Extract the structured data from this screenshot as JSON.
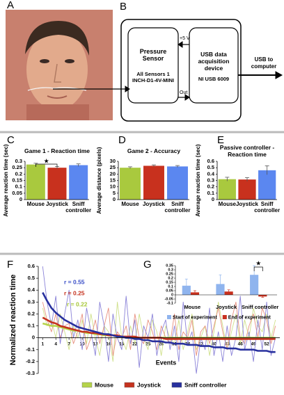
{
  "panel_labels": [
    "A",
    "B",
    "C",
    "D",
    "E",
    "F",
    "G"
  ],
  "diagram": {
    "sensor": {
      "title": "Pressure Sensor",
      "detail": "All Sensors 1 INCH-D1-4V-MINI"
    },
    "daq": {
      "title": "USB data acquisition device",
      "detail": "NI USB 6009"
    },
    "power_label": "+5 V",
    "out_label": "Out",
    "output_label": "USB to computer"
  },
  "chart_data": [
    {
      "type": "bar",
      "title": "Game 1 - Reaction time",
      "y_label": "Average reaction time (sec)",
      "categories": [
        "Mouse",
        "Joystick",
        "Sniff controller"
      ],
      "values": [
        0.275,
        0.25,
        0.27
      ],
      "errors": [
        0.01,
        0.01,
        0.01
      ],
      "colors": [
        "#a9c93e",
        "#c8311e",
        "#5b87f0"
      ],
      "ylim": [
        0,
        0.3
      ],
      "yticks": [
        0,
        0.05,
        0.1,
        0.15,
        0.2,
        0.25,
        0.3
      ],
      "significance": "★"
    },
    {
      "type": "bar",
      "title": "Game 2 - Accuracy",
      "y_label": "Average distance (pixels)",
      "categories": [
        "Mouse",
        "Joystick",
        "Sniff controller"
      ],
      "values": [
        25,
        26.5,
        26
      ],
      "errors": [
        0.7,
        0.7,
        0.7
      ],
      "colors": [
        "#a9c93e",
        "#c8311e",
        "#5b87f0"
      ],
      "ylim": [
        0,
        30
      ],
      "yticks": [
        0,
        5,
        10,
        15,
        20,
        25,
        30
      ]
    },
    {
      "type": "bar",
      "title": "Passive controller - Reaction time",
      "y_label": "Average reaction time (sec)",
      "categories": [
        "Mouse",
        "Joystick",
        "Sniff controller"
      ],
      "values": [
        0.32,
        0.315,
        0.46
      ],
      "errors": [
        0.03,
        0.03,
        0.07
      ],
      "colors": [
        "#a9c93e",
        "#c8311e",
        "#5b87f0"
      ],
      "ylim": [
        0,
        0.6
      ],
      "yticks": [
        0,
        0.1,
        0.2,
        0.3,
        0.4,
        0.5,
        0.6
      ]
    },
    {
      "type": "line",
      "y_label": "Normalized reaction time",
      "x_label": "Events",
      "x": [
        1,
        2,
        3,
        4,
        5,
        6,
        7,
        8,
        9,
        10,
        11,
        12,
        13,
        14,
        15,
        16,
        17,
        18,
        19,
        20,
        21,
        22,
        23,
        24,
        25,
        26,
        27,
        28,
        29,
        30,
        31,
        32,
        33,
        34,
        35,
        36,
        37,
        38,
        39,
        40,
        41,
        42,
        43,
        44,
        45,
        46,
        47,
        48,
        49,
        50,
        51,
        52,
        53,
        54
      ],
      "xlim": [
        0,
        55
      ],
      "xticks": [
        1,
        4,
        7,
        10,
        13,
        16,
        19,
        22,
        25,
        28,
        31,
        34,
        37,
        40,
        43,
        46,
        49,
        52
      ],
      "ylim": [
        -0.3,
        0.6
      ],
      "yticks": [
        -0.3,
        -0.2,
        -0.1,
        0,
        0.1,
        0.2,
        0.3,
        0.4,
        0.5,
        0.6
      ],
      "series": [
        {
          "name": "Mouse",
          "color": "#cfe08a",
          "fit_color": "#b5d34a",
          "values": [
            0.25,
            0.1,
            0.15,
            0.0,
            0.2,
            0.05,
            -0.1,
            0.1,
            0.0,
            0.15,
            -0.05,
            0.2,
            0.0,
            -0.15,
            0.1,
            0.05,
            -0.2,
            0.3,
            0.0,
            -0.1,
            0.1,
            -0.05,
            0.2,
            0.0,
            -0.1,
            0.15,
            0.05,
            -0.15,
            0.1,
            0.0,
            -0.05,
            0.15,
            -0.1,
            0.05,
            0.2,
            -0.1,
            0.0,
            0.1,
            -0.15,
            0.05,
            0.3,
            0.1,
            -0.1,
            0.05,
            0.2,
            -0.05,
            0.15,
            0.0,
            0.25,
            0.1,
            0.05,
            0.2,
            0.0,
            0.15
          ],
          "fit_values": [
            0.12,
            0.11,
            0.1,
            0.1,
            0.09,
            0.08,
            0.07,
            0.06,
            0.06,
            0.05,
            0.04,
            0.04,
            0.03,
            0.03,
            0.02,
            0.02,
            0.02,
            0.01,
            0.01,
            0.01,
            0.0,
            0.0,
            0.0,
            0.0,
            0.0,
            0.0,
            0.0,
            0.0,
            0.0,
            0.0,
            0.0,
            0.0,
            0.0,
            0.0,
            0.0,
            0.0,
            0.0,
            0.0,
            0.0,
            0.0,
            0.0,
            0.0,
            0.0,
            0.0,
            0.0,
            0.0,
            0.0,
            0.0,
            0.0,
            0.0,
            0.0,
            0.0,
            0.0,
            0.0
          ]
        },
        {
          "name": "Joystick",
          "color": "#e8907f",
          "fit_color": "#c5321e",
          "values": [
            0.3,
            0.15,
            0.05,
            0.2,
            0.0,
            0.1,
            0.12,
            -0.05,
            0.05,
            0.2,
            -0.1,
            0.0,
            0.15,
            -0.05,
            0.1,
            0.25,
            -0.15,
            0.05,
            0.0,
            0.1,
            -0.1,
            0.2,
            0.0,
            -0.05,
            0.15,
            0.05,
            -0.1,
            0.1,
            0.0,
            -0.05,
            0.2,
            -0.1,
            0.05,
            0.0,
            0.15,
            -0.15,
            0.05,
            0.1,
            -0.05,
            0.1,
            0.25,
            0.05,
            -0.1,
            0.15,
            0.3,
            0.0,
            -0.05,
            0.1,
            0.2,
            0.0,
            0.25,
            0.15,
            -0.05,
            0.1
          ],
          "fit_values": [
            0.17,
            0.15,
            0.13,
            0.12,
            0.1,
            0.09,
            0.08,
            0.07,
            0.06,
            0.05,
            0.05,
            0.04,
            0.04,
            0.03,
            0.03,
            0.02,
            0.02,
            0.02,
            0.01,
            0.01,
            0.01,
            0.01,
            0.0,
            0.0,
            0.0,
            0.0,
            0.0,
            0.0,
            -0.01,
            -0.01,
            -0.01,
            -0.01,
            -0.01,
            -0.01,
            -0.01,
            -0.01,
            -0.01,
            -0.01,
            -0.01,
            -0.01,
            -0.01,
            -0.01,
            -0.01,
            -0.01,
            -0.01,
            -0.01,
            -0.01,
            -0.01,
            -0.01,
            -0.01,
            -0.01,
            -0.01,
            -0.01,
            -0.01
          ]
        },
        {
          "name": "Sniff controller",
          "color": "#8a82d8",
          "fit_color": "#28309e",
          "values": [
            0.6,
            0.3,
            0.1,
            0.35,
            -0.05,
            0.2,
            0.4,
            0.0,
            0.15,
            -0.1,
            0.25,
            0.05,
            -0.15,
            0.3,
            0.1,
            -0.2,
            0.2,
            0.0,
            -0.1,
            0.35,
            -0.05,
            0.15,
            -0.25,
            0.1,
            0.0,
            0.2,
            -0.15,
            0.05,
            0.15,
            -0.1,
            0.1,
            -0.2,
            0.3,
            -0.05,
            0.05,
            -0.3,
            0.0,
            -0.1,
            0.25,
            -0.15,
            0.05,
            -0.2,
            0.1,
            -0.15,
            0.0,
            0.35,
            -0.1,
            0.05,
            -0.2,
            0.15,
            -0.1,
            0.3,
            -0.15,
            0.0
          ],
          "fit_values": [
            0.38,
            0.31,
            0.25,
            0.21,
            0.18,
            0.15,
            0.13,
            0.11,
            0.09,
            0.08,
            0.07,
            0.06,
            0.05,
            0.04,
            0.03,
            0.03,
            0.02,
            0.01,
            0.01,
            0.0,
            0.0,
            -0.01,
            -0.01,
            -0.02,
            -0.02,
            -0.03,
            -0.03,
            -0.03,
            -0.04,
            -0.04,
            -0.05,
            -0.05,
            -0.05,
            -0.06,
            -0.06,
            -0.06,
            -0.07,
            -0.07,
            -0.07,
            -0.08,
            -0.08,
            -0.08,
            -0.09,
            -0.09,
            -0.09,
            -0.1,
            -0.1,
            -0.1,
            -0.1,
            -0.11,
            -0.11,
            -0.11,
            -0.12,
            -0.12
          ]
        }
      ],
      "annotations": [
        {
          "text": "r = 0.55",
          "color": "#3a4fc8"
        },
        {
          "text": "r = 0.25",
          "color": "#c5321e"
        },
        {
          "text": "r = 0.22",
          "color": "#a8c83a"
        }
      ]
    },
    {
      "type": "grouped_bar",
      "categories": [
        "Mouse",
        "Joystick",
        "Sniff controller"
      ],
      "ylim": [
        -0.1,
        0.35
      ],
      "yticks": [
        -0.1,
        -0.05,
        0,
        0.05,
        0.1,
        0.15,
        0.2,
        0.25,
        0.3,
        0.35
      ],
      "significance": "★",
      "series": [
        {
          "name": "Start of experiment",
          "color": "#8fb4ee",
          "values": [
            0.11,
            0.13,
            0.24
          ],
          "errors": [
            0.08,
            0.11,
            0.11
          ]
        },
        {
          "name": "End of experiment",
          "color": "#c8311e",
          "values": [
            0.03,
            0.04,
            -0.02
          ],
          "errors": [
            0.02,
            0.02,
            0.01
          ]
        }
      ]
    }
  ]
}
